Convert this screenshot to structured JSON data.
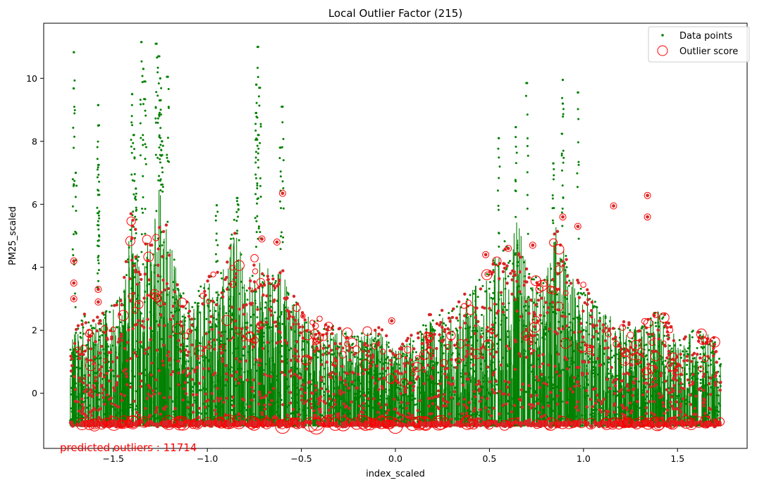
{
  "chart_data": {
    "type": "scatter",
    "title": "Local Outlier Factor (215)",
    "xlabel": "index_scaled",
    "ylabel": "PM25_scaled",
    "xlim": [
      -1.87,
      1.87
    ],
    "ylim": [
      -1.75,
      11.75
    ],
    "x_ticks": [
      -1.5,
      -1.0,
      -0.5,
      0.0,
      0.5,
      1.0,
      1.5
    ],
    "x_tick_labels": [
      "−1.5",
      "−1.0",
      "−0.5",
      "0.0",
      "0.5",
      "1.0",
      "1.5"
    ],
    "y_ticks": [
      0,
      2,
      4,
      6,
      8,
      10
    ],
    "y_tick_labels": [
      "0",
      "2",
      "4",
      "6",
      "8",
      "10"
    ],
    "grid": false,
    "legend_position": "top-right",
    "colors": {
      "points": "#008000",
      "outliers": "#ff0000",
      "outlier_fill": "#d62728"
    },
    "series": [
      {
        "name": "Data points",
        "marker": "dot",
        "color": "#008000"
      },
      {
        "name": "Outlier score",
        "marker": "open-circle",
        "color": "#ff0000"
      }
    ],
    "x_range_data": [
      -1.73,
      1.73
    ],
    "spikes": [
      {
        "x": -1.71,
        "y": 10.83
      },
      {
        "x": -1.71,
        "y": 9.68
      },
      {
        "x": -1.7,
        "y": 7.0
      },
      {
        "x": -1.58,
        "y": 9.15
      },
      {
        "x": -1.58,
        "y": 8.5
      },
      {
        "x": -1.58,
        "y": 7.25
      },
      {
        "x": -1.58,
        "y": 6.3
      },
      {
        "x": -1.4,
        "y": 9.5
      },
      {
        "x": -1.39,
        "y": 8.2
      },
      {
        "x": -1.38,
        "y": 6.5
      },
      {
        "x": -1.35,
        "y": 11.15
      },
      {
        "x": -1.34,
        "y": 10.3
      },
      {
        "x": -1.33,
        "y": 9.9
      },
      {
        "x": -1.27,
        "y": 11.1
      },
      {
        "x": -1.26,
        "y": 10.7
      },
      {
        "x": -1.25,
        "y": 10.0
      },
      {
        "x": -1.25,
        "y": 9.3
      },
      {
        "x": -1.21,
        "y": 10.05
      },
      {
        "x": -1.24,
        "y": 8.0
      },
      {
        "x": -0.95,
        "y": 5.97
      },
      {
        "x": -0.84,
        "y": 6.2
      },
      {
        "x": -0.73,
        "y": 11.0
      },
      {
        "x": -0.74,
        "y": 9.8
      },
      {
        "x": -0.72,
        "y": 9.7
      },
      {
        "x": -0.74,
        "y": 8.9
      },
      {
        "x": -0.73,
        "y": 8.2
      },
      {
        "x": -0.6,
        "y": 9.1
      },
      {
        "x": -0.61,
        "y": 7.8
      },
      {
        "x": 0.55,
        "y": 8.1
      },
      {
        "x": 0.64,
        "y": 8.45
      },
      {
        "x": 0.7,
        "y": 9.85
      },
      {
        "x": 0.84,
        "y": 7.3
      },
      {
        "x": 0.89,
        "y": 9.95
      },
      {
        "x": 0.89,
        "y": 9.2
      },
      {
        "x": 0.97,
        "y": 9.55
      }
    ],
    "annotation": {
      "text": "predicted outliers : 11714",
      "color": "#ff0000"
    }
  }
}
